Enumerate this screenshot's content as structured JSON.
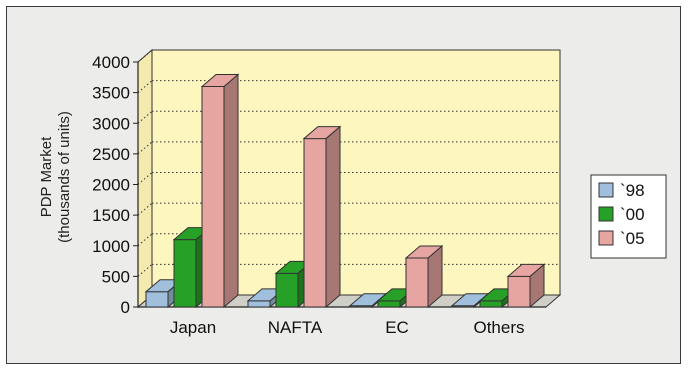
{
  "chart_data": {
    "type": "bar",
    "ylabel_lines": [
      "PDP Market",
      "(thousands of units)"
    ],
    "categories": [
      "Japan",
      "NAFTA",
      "EC",
      "Others"
    ],
    "series": [
      {
        "name": "`98",
        "values": [
          250,
          100,
          20,
          20
        ],
        "color": "#9fbfdc"
      },
      {
        "name": "`00",
        "values": [
          1100,
          550,
          100,
          100
        ],
        "color": "#26a026"
      },
      {
        "name": "`05",
        "values": [
          3600,
          2750,
          800,
          500
        ],
        "color": "#e6a5a0"
      }
    ],
    "yticks": [
      "4000",
      "3500",
      "3000",
      "2500",
      "2000",
      "1500",
      "1000",
      "500",
      "0"
    ],
    "ylim": [
      0,
      4000
    ],
    "grid": true,
    "legend": "right",
    "plot_background": "#fdf6bf"
  }
}
